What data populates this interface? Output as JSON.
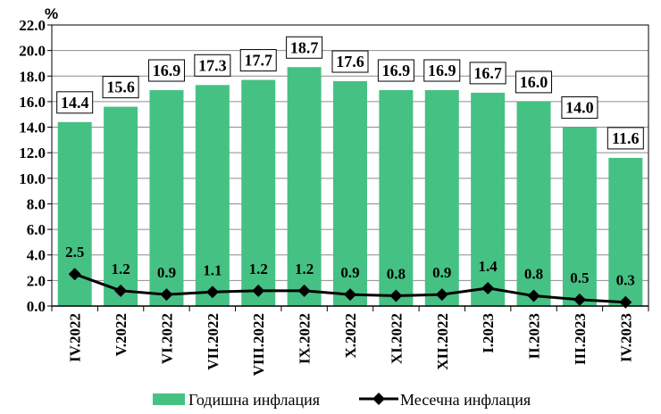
{
  "chart_data": {
    "type": "bar",
    "categories": [
      "IV.2022",
      "V.2022",
      "VI.2022",
      "VII.2022",
      "VIII.2022",
      "IX.2022",
      "X.2022",
      "XI.2022",
      "XII.2022",
      "I.2023",
      "II.2023",
      "III.2023",
      "IV.2023"
    ],
    "series": [
      {
        "name": "Годишна инфлация",
        "type": "bar",
        "color": "#45c184",
        "values": [
          14.4,
          15.6,
          16.9,
          17.3,
          17.7,
          18.7,
          17.6,
          16.9,
          16.9,
          16.7,
          16.0,
          14.0,
          11.6
        ],
        "labels": [
          "14.4",
          "15.6",
          "16.9",
          "17.3",
          "17.7",
          "18.7",
          "17.6",
          "16.9",
          "16.9",
          "16.7",
          "16.0",
          "14.0",
          "11.6"
        ]
      },
      {
        "name": "Месечна инфлация",
        "type": "line",
        "color": "#000000",
        "marker": "diamond",
        "values": [
          2.5,
          1.2,
          0.9,
          1.1,
          1.2,
          1.2,
          0.9,
          0.8,
          0.9,
          1.4,
          0.8,
          0.5,
          0.3
        ],
        "labels": [
          "2.5",
          "1.2",
          "0.9",
          "1.1",
          "1.2",
          "1.2",
          "0.9",
          "0.8",
          "0.9",
          "1.4",
          "0.8",
          "0.5",
          "0.3"
        ]
      }
    ],
    "ylabel": "%",
    "ylim": [
      0,
      22
    ],
    "yticks": [
      "0.0",
      "2.0",
      "4.0",
      "6.0",
      "8.0",
      "10.0",
      "12.0",
      "14.0",
      "16.0",
      "18.0",
      "20.0",
      "22.0"
    ],
    "grid": true,
    "legend": "bottom"
  }
}
